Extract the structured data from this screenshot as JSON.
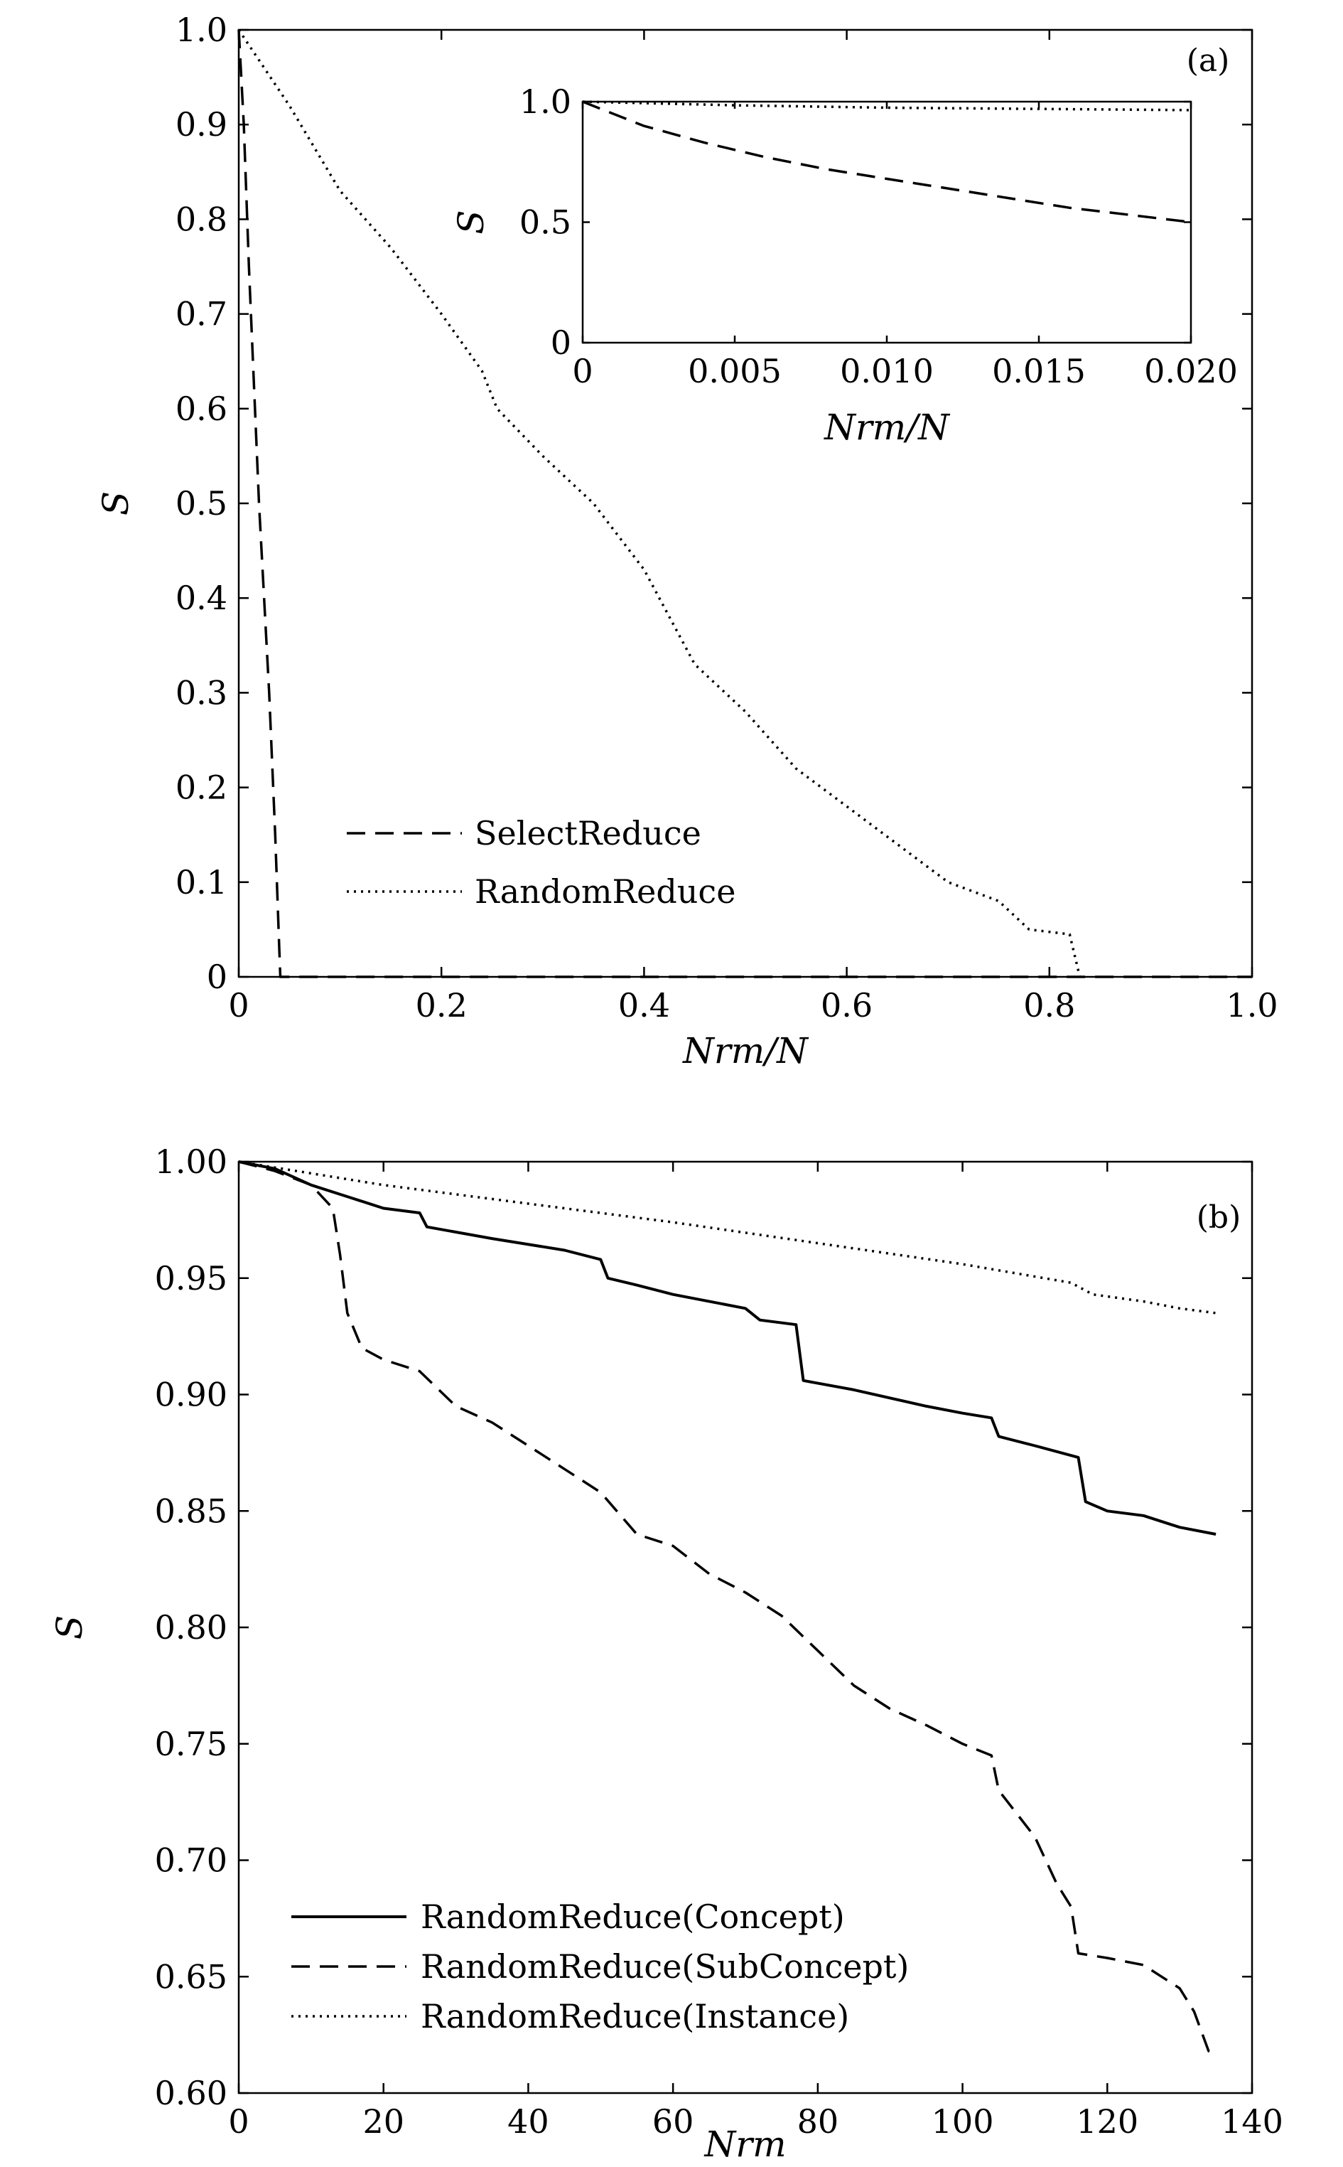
{
  "chart_data": [
    {
      "type": "line",
      "panel_label": "(a)",
      "xlabel": "Nrm/N",
      "ylabel": "S",
      "xlim": [
        0,
        1.0
      ],
      "ylim": [
        0,
        1.0
      ],
      "x_ticks": [
        "0",
        "0.2",
        "0.4",
        "0.6",
        "0.8",
        "1.0"
      ],
      "y_ticks": [
        "0",
        "0.1",
        "0.2",
        "0.3",
        "0.4",
        "0.5",
        "0.6",
        "0.7",
        "0.8",
        "0.9",
        "1.0"
      ],
      "legend_position": "lower-left",
      "series": [
        {
          "name": "SelectReduce",
          "style": "dashed",
          "x": [
            0,
            0.005,
            0.01,
            0.02,
            0.03,
            0.036,
            0.04,
            0.041,
            0.05,
            0.1,
            0.2,
            0.4,
            0.6,
            0.8,
            1.0
          ],
          "y": [
            1.0,
            0.9,
            0.75,
            0.5,
            0.3,
            0.15,
            0.03,
            0.0,
            0.0,
            0.0,
            0.0,
            0.0,
            0.0,
            0.0,
            0.0
          ]
        },
        {
          "name": "RandomReduce",
          "style": "dotted",
          "x": [
            0,
            0.05,
            0.1,
            0.15,
            0.2,
            0.24,
            0.255,
            0.3,
            0.35,
            0.4,
            0.45,
            0.5,
            0.55,
            0.6,
            0.65,
            0.7,
            0.75,
            0.78,
            0.82,
            0.83
          ],
          "y": [
            1.0,
            0.92,
            0.83,
            0.77,
            0.7,
            0.64,
            0.6,
            0.55,
            0.5,
            0.43,
            0.33,
            0.28,
            0.22,
            0.18,
            0.14,
            0.1,
            0.08,
            0.05,
            0.045,
            0.0
          ]
        }
      ],
      "inset": {
        "xlabel": "Nrm/N",
        "ylabel": "S",
        "xlim": [
          0,
          0.02
        ],
        "ylim": [
          0,
          1.0
        ],
        "x_ticks": [
          "0",
          "0.005",
          "0.010",
          "0.015",
          "0.020"
        ],
        "y_ticks": [
          "0",
          "0.5",
          "1.0"
        ],
        "series": [
          {
            "name": "SelectReduce",
            "style": "dashed",
            "x": [
              0,
              0.002,
              0.004,
              0.006,
              0.008,
              0.01,
              0.012,
              0.014,
              0.016,
              0.018,
              0.02
            ],
            "y": [
              1.0,
              0.9,
              0.83,
              0.77,
              0.72,
              0.68,
              0.64,
              0.6,
              0.56,
              0.53,
              0.5
            ]
          },
          {
            "name": "RandomReduce",
            "style": "dotted",
            "x": [
              0,
              0.005,
              0.01,
              0.015,
              0.02
            ],
            "y": [
              1.0,
              0.985,
              0.975,
              0.97,
              0.965
            ]
          }
        ]
      }
    },
    {
      "type": "line",
      "panel_label": "(b)",
      "xlabel": "Nrm",
      "ylabel": "S",
      "xlim": [
        0,
        140
      ],
      "ylim": [
        0.6,
        1.0
      ],
      "x_ticks": [
        "0",
        "20",
        "40",
        "60",
        "80",
        "100",
        "120",
        "140"
      ],
      "y_ticks": [
        "0.60",
        "0.65",
        "0.70",
        "0.75",
        "0.80",
        "0.85",
        "0.90",
        "0.95",
        "1.00"
      ],
      "legend_position": "lower-left",
      "series": [
        {
          "name": "RandomReduce(Concept)",
          "style": "solid",
          "x": [
            0,
            5,
            10,
            15,
            20,
            25,
            26,
            35,
            45,
            50,
            51,
            55,
            60,
            70,
            72,
            77,
            78,
            85,
            95,
            100,
            104,
            105,
            110,
            116,
            117,
            120,
            125,
            130,
            135
          ],
          "y": [
            1.0,
            0.997,
            0.99,
            0.985,
            0.98,
            0.978,
            0.972,
            0.967,
            0.962,
            0.958,
            0.95,
            0.947,
            0.943,
            0.937,
            0.932,
            0.93,
            0.906,
            0.902,
            0.895,
            0.892,
            0.89,
            0.882,
            0.878,
            0.873,
            0.854,
            0.85,
            0.848,
            0.843,
            0.84
          ]
        },
        {
          "name": "RandomReduce(SubConcept)",
          "style": "dashed",
          "x": [
            0,
            5,
            10,
            13,
            14,
            15,
            17,
            20,
            25,
            30,
            35,
            40,
            45,
            50,
            55,
            60,
            65,
            70,
            75,
            80,
            85,
            90,
            95,
            100,
            104,
            105,
            110,
            113,
            115,
            116,
            120,
            125,
            130,
            132,
            134,
            135
          ],
          "y": [
            1.0,
            0.996,
            0.99,
            0.98,
            0.96,
            0.935,
            0.92,
            0.915,
            0.91,
            0.895,
            0.888,
            0.878,
            0.868,
            0.858,
            0.84,
            0.835,
            0.823,
            0.815,
            0.805,
            0.79,
            0.775,
            0.765,
            0.758,
            0.75,
            0.745,
            0.73,
            0.71,
            0.69,
            0.68,
            0.66,
            0.658,
            0.655,
            0.645,
            0.635,
            0.618,
            0.617
          ]
        },
        {
          "name": "RandomReduce(Instance)",
          "style": "dotted",
          "x": [
            0,
            20,
            40,
            60,
            80,
            100,
            115,
            118,
            125,
            130,
            135
          ],
          "y": [
            1.0,
            0.99,
            0.982,
            0.974,
            0.965,
            0.956,
            0.948,
            0.943,
            0.94,
            0.937,
            0.935
          ]
        }
      ]
    }
  ]
}
